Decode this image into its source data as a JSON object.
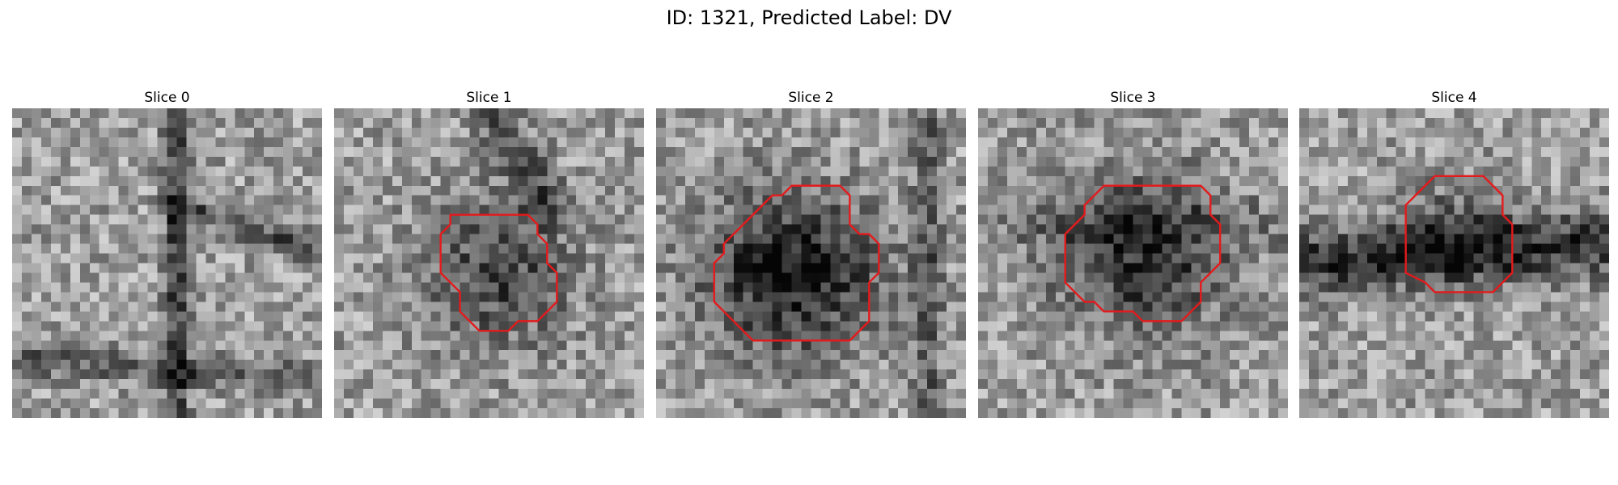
{
  "figure": {
    "title": "ID: 1321, Predicted Label: DV"
  },
  "panels": [
    {
      "title": "Slice 0",
      "grid": 32,
      "seed": 11,
      "has_contour": false,
      "contour": [],
      "contour_color": "#e41a1c"
    },
    {
      "title": "Slice 1",
      "grid": 32,
      "seed": 23,
      "has_contour": true,
      "contour": [
        [
          12,
          11
        ],
        [
          20,
          11
        ],
        [
          21,
          12
        ],
        [
          21,
          13
        ],
        [
          22,
          14
        ],
        [
          22,
          16
        ],
        [
          23,
          17
        ],
        [
          23,
          20
        ],
        [
          22,
          21
        ],
        [
          21,
          22
        ],
        [
          19,
          22
        ],
        [
          18,
          23
        ],
        [
          15,
          23
        ],
        [
          14,
          22
        ],
        [
          13,
          21
        ],
        [
          13,
          19
        ],
        [
          12,
          18
        ],
        [
          11,
          17
        ],
        [
          11,
          13
        ],
        [
          12,
          12
        ]
      ],
      "contour_color": "#e41a1c"
    },
    {
      "title": "Slice 2",
      "grid": 32,
      "seed": 37,
      "has_contour": true,
      "contour": [
        [
          14,
          8
        ],
        [
          19,
          8
        ],
        [
          20,
          9
        ],
        [
          20,
          12
        ],
        [
          21,
          13
        ],
        [
          22,
          13
        ],
        [
          23,
          14
        ],
        [
          23,
          17
        ],
        [
          22,
          18
        ],
        [
          22,
          22
        ],
        [
          21,
          23
        ],
        [
          20,
          24
        ],
        [
          10,
          24
        ],
        [
          8,
          22
        ],
        [
          6,
          20
        ],
        [
          6,
          16
        ],
        [
          7,
          15
        ],
        [
          7,
          14
        ],
        [
          8,
          13
        ],
        [
          9,
          12
        ],
        [
          10,
          11
        ],
        [
          12,
          9
        ],
        [
          13,
          9
        ]
      ],
      "contour_color": "#e41a1c"
    },
    {
      "title": "Slice 3",
      "grid": 32,
      "seed": 49,
      "has_contour": true,
      "contour": [
        [
          13,
          8
        ],
        [
          23,
          8
        ],
        [
          24,
          9
        ],
        [
          24,
          11
        ],
        [
          25,
          12
        ],
        [
          25,
          16
        ],
        [
          24,
          17
        ],
        [
          23,
          18
        ],
        [
          23,
          20
        ],
        [
          21,
          22
        ],
        [
          17,
          22
        ],
        [
          16,
          21
        ],
        [
          13,
          21
        ],
        [
          12,
          20
        ],
        [
          11,
          20
        ],
        [
          9,
          18
        ],
        [
          9,
          13
        ],
        [
          10,
          12
        ],
        [
          11,
          11
        ],
        [
          11,
          10
        ],
        [
          12,
          9
        ]
      ],
      "contour_color": "#e41a1c"
    },
    {
      "title": "Slice 4",
      "grid": 32,
      "seed": 61,
      "has_contour": true,
      "contour": [
        [
          14,
          7
        ],
        [
          19,
          7
        ],
        [
          20,
          8
        ],
        [
          21,
          9
        ],
        [
          21,
          11
        ],
        [
          22,
          12
        ],
        [
          22,
          17
        ],
        [
          21,
          18
        ],
        [
          20,
          19
        ],
        [
          14,
          19
        ],
        [
          13,
          18
        ],
        [
          11,
          17
        ],
        [
          11,
          10
        ],
        [
          12,
          9
        ],
        [
          13,
          8
        ]
      ],
      "contour_color": "#e41a1c"
    }
  ]
}
